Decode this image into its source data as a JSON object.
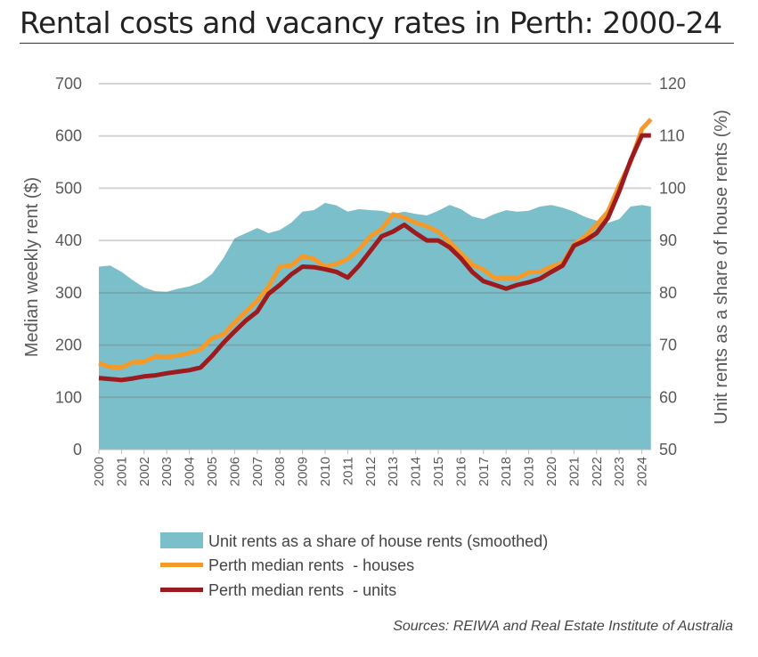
{
  "title": "Rental costs and vacancy rates in Perth: 2000-24",
  "source": "Sources: REIWA and Real Estate Institute of Australia",
  "chart_data": {
    "type": "line",
    "title": "Rental costs and vacancy rates in Perth: 2000-24",
    "ylabel": "Median weekly rent ($)",
    "y2label": "Unit rents as a share of house rents (%)",
    "ylim": [
      0,
      700
    ],
    "y2lim": [
      50,
      120
    ],
    "yticks": [
      "0",
      "100",
      "200",
      "300",
      "400",
      "500",
      "600",
      "700"
    ],
    "y2ticks": [
      "50",
      "60",
      "70",
      "80",
      "90",
      "100",
      "110",
      "120"
    ],
    "xticks": [
      "2000",
      "2001",
      "2002",
      "2003",
      "2004",
      "2005",
      "2006",
      "2007",
      "2008",
      "2009",
      "2010",
      "2011",
      "2012",
      "2013",
      "2014",
      "2015",
      "2016",
      "2017",
      "2018",
      "2019",
      "2020",
      "2021",
      "2022",
      "2023",
      "2024"
    ],
    "grid": true,
    "legend_position": "bottom",
    "colors": {
      "share": "#7bbfcb",
      "houses": "#f39a2b",
      "units": "#9b1b1f"
    },
    "x": [
      2000,
      2000.5,
      2001,
      2001.5,
      2002,
      2002.5,
      2003,
      2003.5,
      2004,
      2004.5,
      2005,
      2005.5,
      2006,
      2006.5,
      2007,
      2007.5,
      2008,
      2008.5,
      2009,
      2009.5,
      2010,
      2010.5,
      2011,
      2011.5,
      2012,
      2012.5,
      2013,
      2013.5,
      2014,
      2014.5,
      2015,
      2015.5,
      2016,
      2016.5,
      2017,
      2017.5,
      2018,
      2018.5,
      2019,
      2019.5,
      2020,
      2020.5,
      2021,
      2021.5,
      2022,
      2022.5,
      2023,
      2023.5,
      2024,
      2024.4
    ],
    "series": [
      {
        "name": "Unit rents as a share of house rents (smoothed)",
        "type": "area",
        "axis": "right",
        "values": [
          85,
          85.2,
          84,
          82.4,
          81,
          80.3,
          80.2,
          80.8,
          81.2,
          82,
          83.6,
          86.6,
          90.4,
          91.4,
          92.4,
          91.4,
          92,
          93.4,
          95.5,
          95.8,
          97.2,
          96.7,
          95.5,
          96,
          95.8,
          95.7,
          95.1,
          95.5,
          95.1,
          94.8,
          95.7,
          96.8,
          96,
          94.6,
          94.1,
          95.1,
          95.8,
          95.5,
          95.7,
          96.5,
          96.8,
          96.3,
          95.5,
          94.5,
          93.8,
          93.4,
          94.1,
          96.5,
          96.8,
          96.5
        ]
      },
      {
        "name": "Perth median rents  - houses",
        "type": "line",
        "axis": "left",
        "values": [
          165,
          158,
          157,
          167,
          168,
          178,
          177,
          180,
          185,
          192,
          213,
          220,
          243,
          264,
          285,
          312,
          350,
          352,
          370,
          365,
          350,
          355,
          365,
          383,
          408,
          422,
          450,
          444,
          434,
          427,
          417,
          397,
          375,
          354,
          344,
          328,
          328,
          328,
          339,
          340,
          350,
          357,
          393,
          408,
          430,
          455,
          505,
          550,
          613,
          632
        ]
      },
      {
        "name": "Perth median rents  - units",
        "type": "line",
        "axis": "left",
        "values": [
          137,
          135,
          133,
          136,
          140,
          142,
          146,
          149,
          152,
          157,
          179,
          204,
          226,
          247,
          264,
          298,
          315,
          335,
          350,
          349,
          345,
          340,
          329,
          352,
          380,
          408,
          417,
          430,
          414,
          400,
          400,
          387,
          366,
          340,
          322,
          315,
          308,
          315,
          320,
          327,
          340,
          352,
          390,
          400,
          414,
          443,
          494,
          553,
          601,
          601
        ]
      }
    ]
  }
}
